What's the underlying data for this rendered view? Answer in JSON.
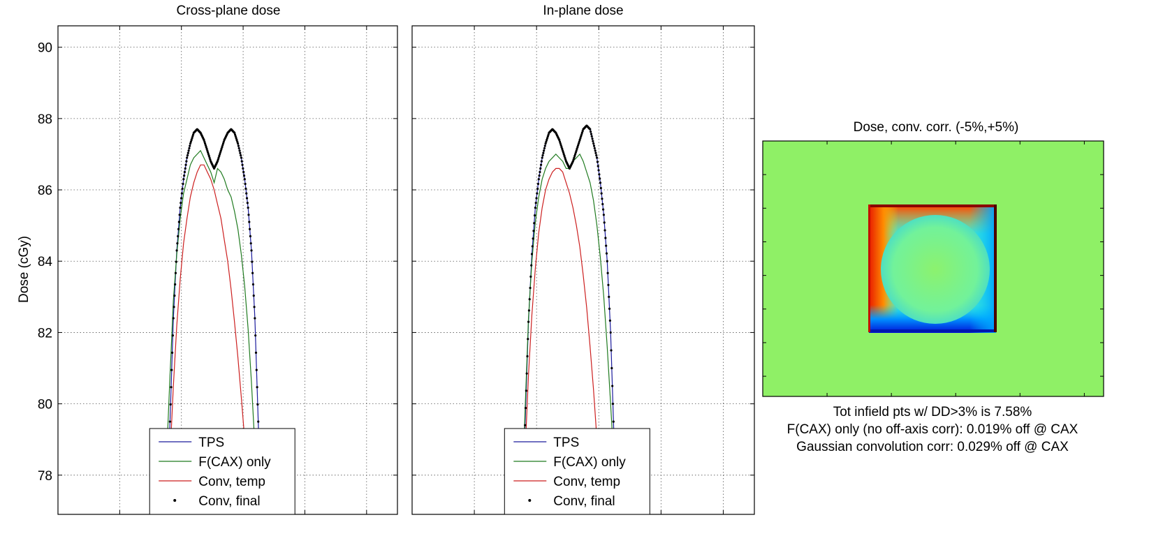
{
  "chart_data": [
    {
      "type": "line",
      "title": "Cross-plane dose",
      "xlabel": "",
      "ylabel": "Dose (cGy)",
      "ylim": [
        76.9,
        90.6
      ],
      "xlim": [
        0,
        1
      ],
      "yticks": [
        "78",
        "80",
        "82",
        "84",
        "86",
        "88",
        "90"
      ],
      "grid": true,
      "legend": {
        "placement": "bottom-center",
        "entries": [
          "TPS",
          "F(CAX) only",
          "Conv, temp",
          "Conv, final"
        ]
      },
      "series": [
        {
          "name": "TPS",
          "color": "#1a1a9c",
          "x": [
            0.32,
            0.33,
            0.34,
            0.35,
            0.36,
            0.37,
            0.38,
            0.39,
            0.4,
            0.41,
            0.42,
            0.43,
            0.44,
            0.45,
            0.46,
            0.47,
            0.48,
            0.49,
            0.5,
            0.51,
            0.52,
            0.53,
            0.54,
            0.55,
            0.56,
            0.57,
            0.58,
            0.59,
            0.6,
            0.61,
            0.62,
            0.63,
            0.64,
            0.65,
            0.66,
            0.67,
            0.68
          ],
          "values": [
            76.5,
            79.5,
            82.4,
            84.3,
            85.5,
            86.3,
            86.9,
            87.3,
            87.6,
            87.7,
            87.6,
            87.4,
            87.1,
            86.8,
            86.6,
            86.8,
            87.1,
            87.4,
            87.6,
            87.7,
            87.6,
            87.3,
            86.9,
            86.3,
            85.5,
            84.3,
            82.4,
            79.5,
            76.5,
            76.5,
            76.5,
            76.5,
            76.5,
            76.5,
            76.5,
            76.5,
            76.5
          ]
        },
        {
          "name": "F(CAX) only",
          "color": "#1f7a1f",
          "x": [
            0.32,
            0.33,
            0.34,
            0.35,
            0.36,
            0.37,
            0.38,
            0.39,
            0.4,
            0.41,
            0.42,
            0.43,
            0.44,
            0.45,
            0.46,
            0.47,
            0.48,
            0.49,
            0.5,
            0.51,
            0.52,
            0.53,
            0.54,
            0.55,
            0.56,
            0.57,
            0.58,
            0.59,
            0.6
          ],
          "values": [
            78.5,
            80.8,
            82.9,
            84.2,
            85.2,
            85.9,
            86.3,
            86.7,
            86.9,
            87.0,
            87.1,
            86.9,
            86.7,
            86.5,
            86.2,
            86.6,
            86.5,
            86.3,
            86.0,
            85.8,
            85.4,
            84.9,
            84.2,
            83.3,
            82.1,
            80.6,
            78.8,
            77.0,
            76.5
          ]
        },
        {
          "name": "Conv, temp",
          "color": "#cc1f1f",
          "x": [
            0.32,
            0.33,
            0.34,
            0.35,
            0.36,
            0.37,
            0.38,
            0.39,
            0.4,
            0.41,
            0.42,
            0.43,
            0.44,
            0.45,
            0.46,
            0.47,
            0.48,
            0.49,
            0.5,
            0.51,
            0.52,
            0.53,
            0.54,
            0.55,
            0.56,
            0.57,
            0.58,
            0.59,
            0.6
          ],
          "values": [
            76.5,
            78.5,
            80.5,
            82.2,
            83.5,
            84.5,
            85.2,
            85.8,
            86.2,
            86.5,
            86.7,
            86.7,
            86.5,
            86.3,
            86.0,
            85.6,
            85.2,
            84.6,
            84.0,
            83.2,
            82.3,
            81.3,
            80.2,
            79.0,
            77.8,
            76.9,
            76.5,
            76.5,
            76.5
          ]
        },
        {
          "name": "Conv, final",
          "color": "#000000",
          "x": [
            0.33,
            0.34,
            0.35,
            0.36,
            0.37,
            0.38,
            0.39,
            0.4,
            0.41,
            0.42,
            0.43,
            0.44,
            0.45,
            0.46,
            0.47,
            0.48,
            0.49,
            0.5,
            0.51,
            0.52,
            0.53,
            0.54,
            0.55,
            0.56,
            0.57,
            0.58,
            0.59
          ],
          "values": [
            79.5,
            82.4,
            84.3,
            85.5,
            86.3,
            86.9,
            87.3,
            87.6,
            87.7,
            87.6,
            87.4,
            87.1,
            86.8,
            86.6,
            86.8,
            87.1,
            87.4,
            87.6,
            87.7,
            87.6,
            87.3,
            86.9,
            86.3,
            85.5,
            84.3,
            82.4,
            79.5
          ]
        }
      ]
    },
    {
      "type": "line",
      "title": "In-plane dose",
      "xlabel": "",
      "ylabel": "",
      "ylim": [
        76.9,
        90.6
      ],
      "xlim": [
        0,
        1
      ],
      "grid": true,
      "legend": {
        "placement": "bottom-center",
        "entries": [
          "TPS",
          "F(CAX) only",
          "Conv, temp",
          "Conv, final"
        ]
      },
      "series": [
        {
          "name": "TPS",
          "color": "#1a1a9c",
          "x": [
            0.32,
            0.33,
            0.34,
            0.35,
            0.36,
            0.37,
            0.38,
            0.39,
            0.4,
            0.41,
            0.42,
            0.43,
            0.44,
            0.45,
            0.46,
            0.47,
            0.48,
            0.49,
            0.5,
            0.51,
            0.52,
            0.53,
            0.54,
            0.55,
            0.56,
            0.57,
            0.58,
            0.59,
            0.6
          ],
          "values": [
            76.5,
            79.4,
            82.3,
            84.2,
            85.5,
            86.3,
            86.9,
            87.3,
            87.6,
            87.7,
            87.6,
            87.4,
            87.1,
            86.8,
            86.6,
            86.8,
            87.1,
            87.4,
            87.7,
            87.8,
            87.7,
            87.3,
            86.9,
            86.2,
            85.3,
            84.0,
            82.0,
            79.0,
            76.5
          ]
        },
        {
          "name": "F(CAX) only",
          "color": "#1f7a1f",
          "x": [
            0.32,
            0.33,
            0.34,
            0.35,
            0.36,
            0.37,
            0.38,
            0.39,
            0.4,
            0.41,
            0.42,
            0.43,
            0.44,
            0.45,
            0.46,
            0.47,
            0.48,
            0.49,
            0.5,
            0.51,
            0.52,
            0.53,
            0.54,
            0.55,
            0.56,
            0.57,
            0.58,
            0.59,
            0.6,
            0.61
          ],
          "values": [
            77.0,
            79.8,
            82.4,
            84.0,
            85.1,
            85.8,
            86.3,
            86.6,
            86.8,
            86.9,
            87.0,
            86.9,
            86.8,
            86.6,
            86.6,
            86.8,
            86.9,
            87.0,
            86.8,
            86.5,
            86.2,
            85.7,
            85.0,
            84.1,
            83.0,
            81.6,
            80.0,
            78.3,
            77.0,
            76.5
          ]
        },
        {
          "name": "Conv, temp",
          "color": "#cc1f1f",
          "x": [
            0.32,
            0.33,
            0.34,
            0.35,
            0.36,
            0.37,
            0.38,
            0.39,
            0.4,
            0.41,
            0.42,
            0.43,
            0.44,
            0.45,
            0.46,
            0.47,
            0.48,
            0.49,
            0.5,
            0.51,
            0.52,
            0.53,
            0.54,
            0.55,
            0.56,
            0.57,
            0.58,
            0.59
          ],
          "values": [
            76.5,
            78.6,
            80.8,
            82.5,
            83.8,
            84.8,
            85.5,
            86.0,
            86.3,
            86.5,
            86.6,
            86.6,
            86.5,
            86.2,
            85.9,
            85.5,
            85.0,
            84.4,
            83.6,
            82.7,
            81.6,
            80.4,
            79.0,
            77.7,
            76.7,
            76.5,
            76.5,
            76.5
          ]
        },
        {
          "name": "Conv, final",
          "color": "#000000",
          "x": [
            0.33,
            0.34,
            0.35,
            0.36,
            0.37,
            0.38,
            0.39,
            0.4,
            0.41,
            0.42,
            0.43,
            0.44,
            0.45,
            0.46,
            0.47,
            0.48,
            0.49,
            0.5,
            0.51,
            0.52,
            0.53,
            0.54,
            0.55,
            0.56,
            0.57,
            0.58,
            0.59
          ],
          "values": [
            79.4,
            82.3,
            84.2,
            85.5,
            86.3,
            86.9,
            87.3,
            87.6,
            87.7,
            87.6,
            87.4,
            87.1,
            86.8,
            86.6,
            86.8,
            87.1,
            87.4,
            87.7,
            87.8,
            87.7,
            87.3,
            86.9,
            86.2,
            85.3,
            84.0,
            82.0,
            79.0
          ]
        }
      ]
    },
    {
      "type": "heatmap",
      "title": "Dose, conv. corr. (-5%,+5%)",
      "colormap": "jet",
      "background_color": "#8ff066",
      "field_colors": {
        "center": "#8ff066",
        "top_edge": "#8a0000",
        "left_edge": "#ff3a00",
        "bottom_edge": "#0018ff",
        "right_edge": "#4a0000",
        "corner_inner": "#00b7ff"
      },
      "annotations": [
        "Tot infield pts w/ DD>3% is 7.58%",
        "F(CAX) only (no off-axis corr): 0.019% off @ CAX",
        "Gaussian convolution corr: 0.029% off @ CAX"
      ]
    }
  ]
}
